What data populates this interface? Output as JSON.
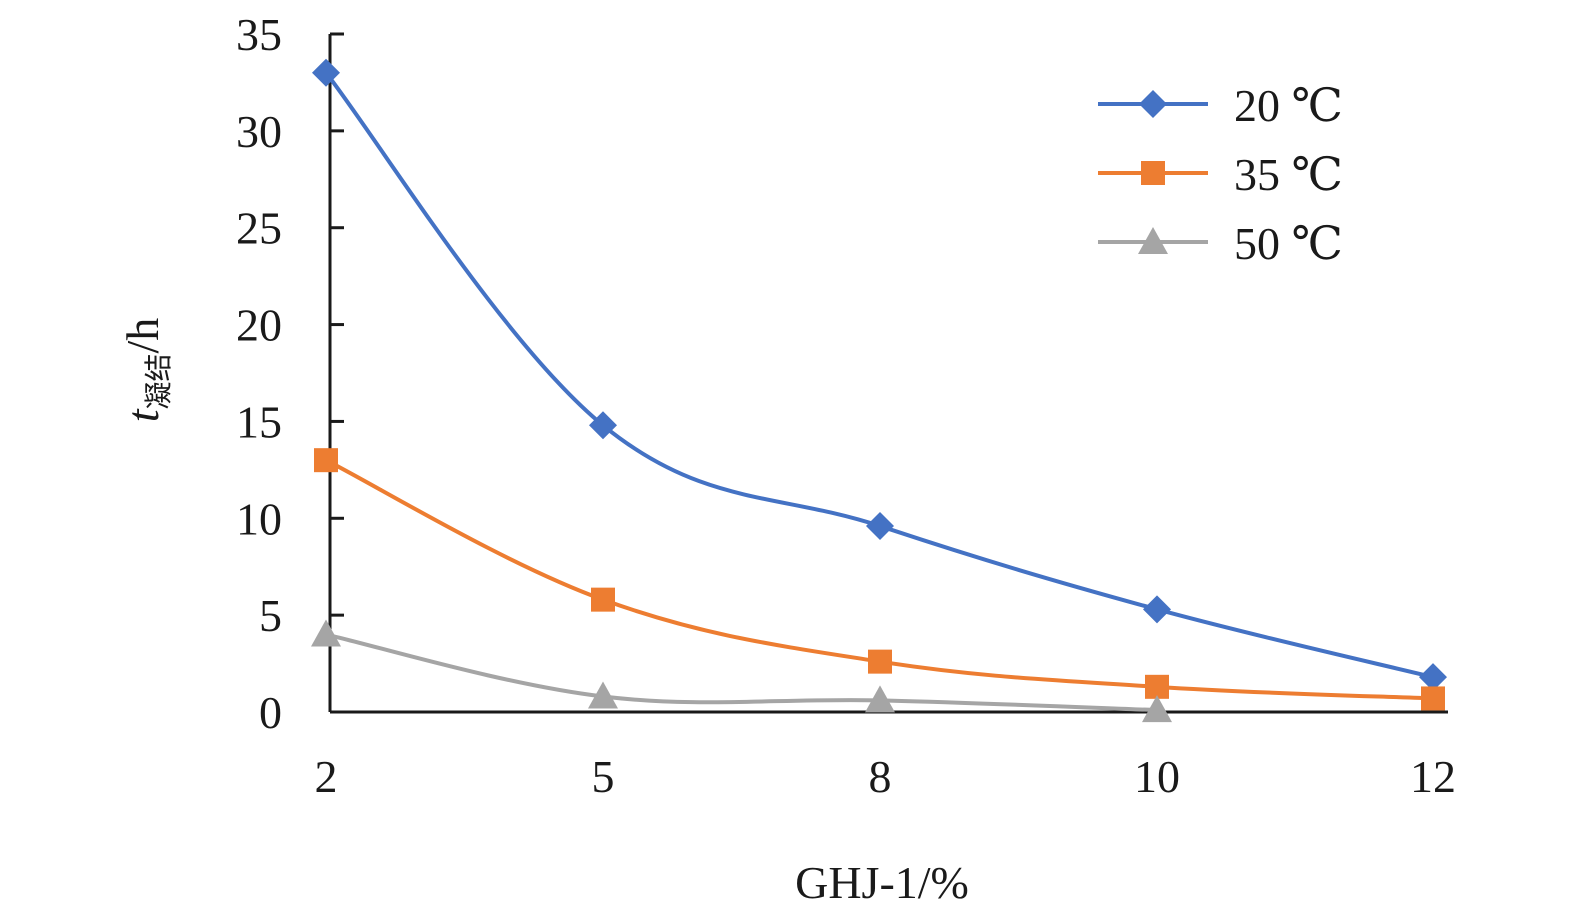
{
  "chart_data": {
    "type": "line",
    "categories": [
      "2",
      "5",
      "8",
      "10",
      "12"
    ],
    "xlabel": "GHJ-1/%",
    "ylabel": {
      "main": "t",
      "subscript": "凝结",
      "unit": "/h"
    },
    "ylim": [
      0,
      35
    ],
    "yticks": [
      0,
      5,
      10,
      15,
      20,
      25,
      30,
      35
    ],
    "grid": false,
    "legend_position": "top-right",
    "series": [
      {
        "name": "20 ℃",
        "values": [
          33,
          14.8,
          9.6,
          5.3,
          1.8
        ],
        "color": "#4472C4",
        "marker": "diamond"
      },
      {
        "name": "35 ℃",
        "values": [
          13,
          5.8,
          2.6,
          1.3,
          0.7
        ],
        "color": "#ED7D31",
        "marker": "square"
      },
      {
        "name": "50 ℃",
        "values": [
          4,
          0.8,
          0.6,
          0.1,
          null
        ],
        "color": "#A5A5A5",
        "marker": "triangle"
      }
    ]
  }
}
